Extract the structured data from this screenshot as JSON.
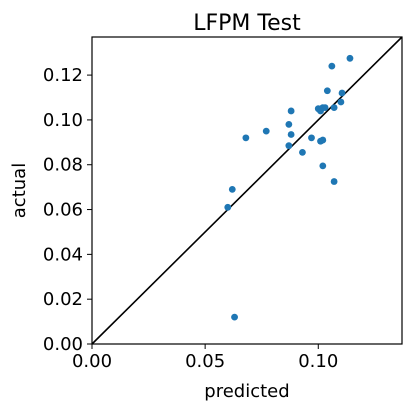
{
  "chart_data": {
    "type": "scatter",
    "title": "LFPM Test",
    "xlabel": "predicted",
    "ylabel": "actual",
    "xlim": [
      0,
      0.137
    ],
    "ylim": [
      0,
      0.137
    ],
    "xticks": [
      {
        "value": 0.0,
        "label": "0.00"
      },
      {
        "value": 0.05,
        "label": "0.05"
      },
      {
        "value": 0.1,
        "label": "0.10"
      }
    ],
    "yticks": [
      {
        "value": 0.0,
        "label": "0.00"
      },
      {
        "value": 0.02,
        "label": "0.02"
      },
      {
        "value": 0.04,
        "label": "0.04"
      },
      {
        "value": 0.06,
        "label": "0.06"
      },
      {
        "value": 0.08,
        "label": "0.08"
      },
      {
        "value": 0.1,
        "label": "0.10"
      },
      {
        "value": 0.12,
        "label": "0.12"
      }
    ],
    "grid": false,
    "reference_line": "y = x",
    "reference_line_color": "#000000",
    "marker_color": "#1f77b4",
    "points": [
      {
        "x": 0.114,
        "y": 0.1275
      },
      {
        "x": 0.106,
        "y": 0.124
      },
      {
        "x": 0.104,
        "y": 0.113
      },
      {
        "x": 0.1105,
        "y": 0.112
      },
      {
        "x": 0.11,
        "y": 0.108
      },
      {
        "x": 0.1,
        "y": 0.105
      },
      {
        "x": 0.101,
        "y": 0.104
      },
      {
        "x": 0.102,
        "y": 0.1055
      },
      {
        "x": 0.103,
        "y": 0.1055
      },
      {
        "x": 0.107,
        "y": 0.1055
      },
      {
        "x": 0.088,
        "y": 0.104
      },
      {
        "x": 0.087,
        "y": 0.098
      },
      {
        "x": 0.077,
        "y": 0.095
      },
      {
        "x": 0.068,
        "y": 0.092
      },
      {
        "x": 0.088,
        "y": 0.0935
      },
      {
        "x": 0.097,
        "y": 0.092
      },
      {
        "x": 0.101,
        "y": 0.0905
      },
      {
        "x": 0.102,
        "y": 0.091
      },
      {
        "x": 0.087,
        "y": 0.0885
      },
      {
        "x": 0.093,
        "y": 0.0855
      },
      {
        "x": 0.102,
        "y": 0.0795
      },
      {
        "x": 0.107,
        "y": 0.0725
      },
      {
        "x": 0.062,
        "y": 0.069
      },
      {
        "x": 0.06,
        "y": 0.061
      },
      {
        "x": 0.063,
        "y": 0.012
      }
    ]
  }
}
